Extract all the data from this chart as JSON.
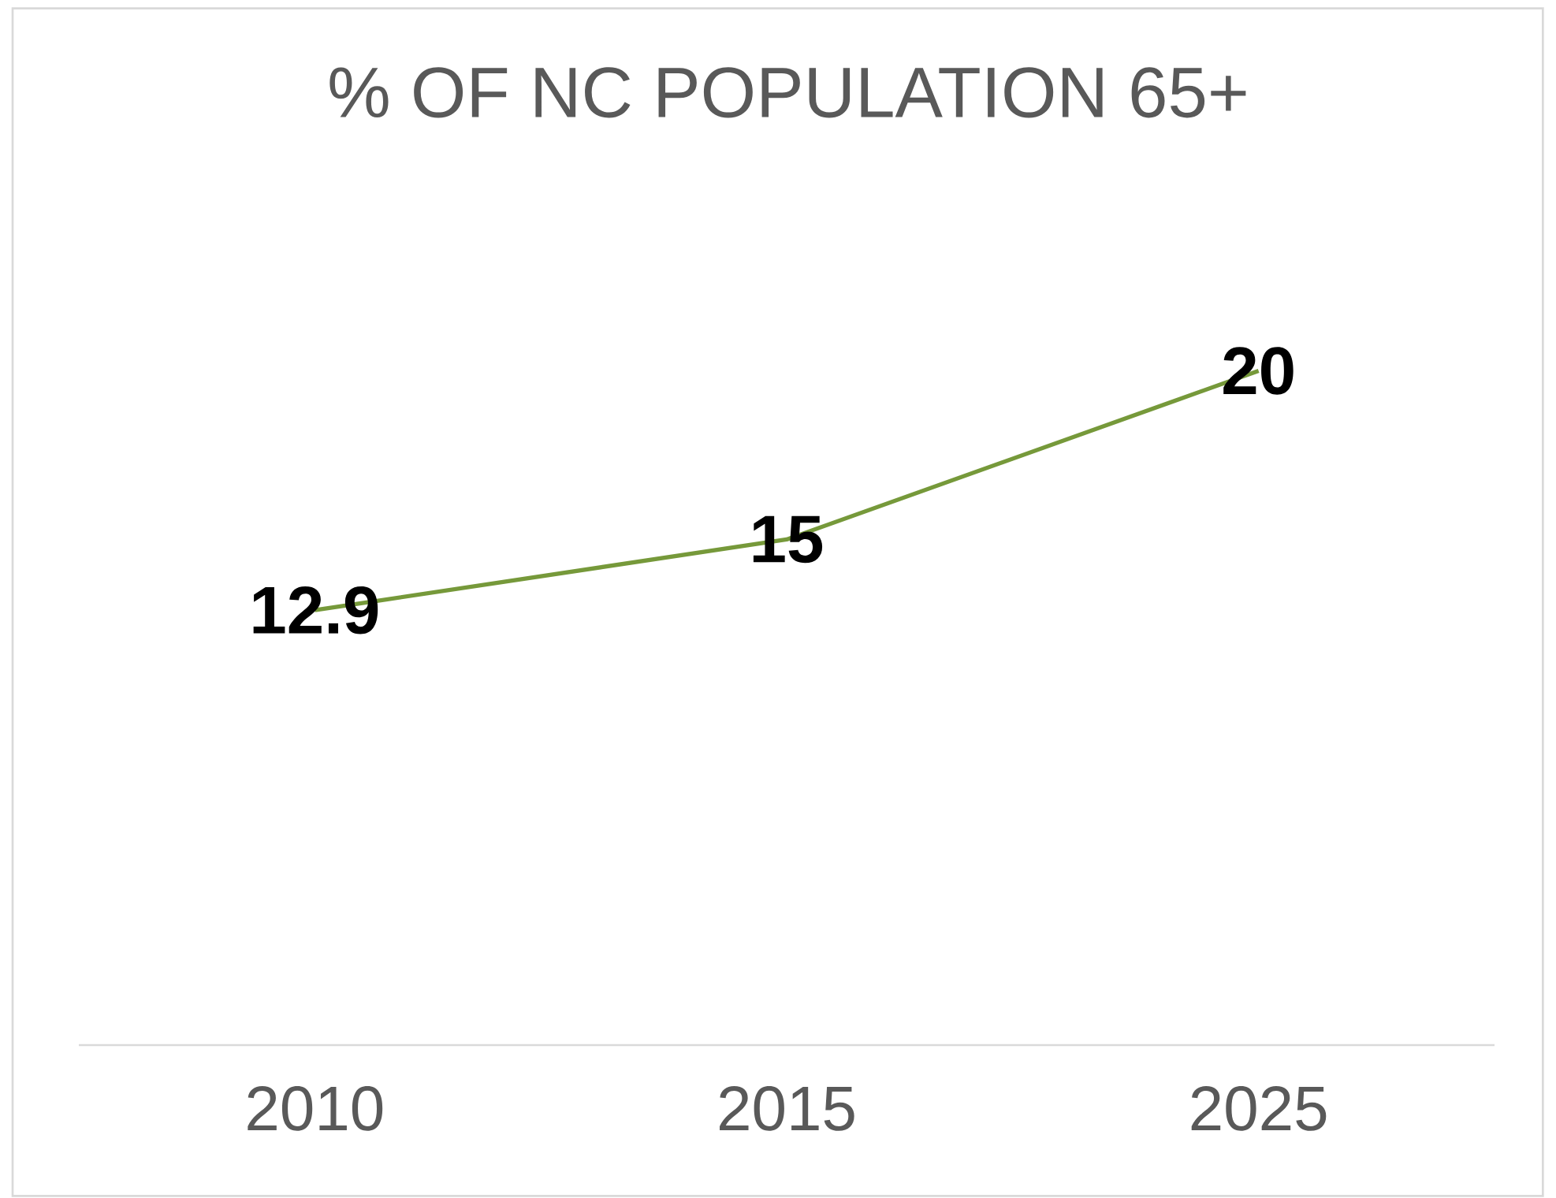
{
  "chart_data": {
    "type": "line",
    "title": "% OF NC POPULATION 65+",
    "categories": [
      "2010",
      "2015",
      "2025"
    ],
    "series": [
      {
        "color": "#76993a",
        "values": [
          12.9,
          15,
          20
        ]
      }
    ],
    "data_labels": true,
    "marker": "none",
    "line_style": "solid"
  }
}
